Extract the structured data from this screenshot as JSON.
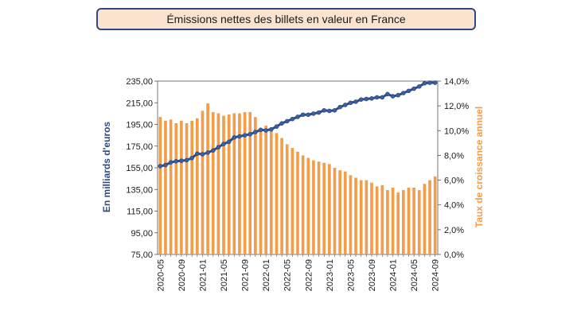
{
  "title": "Émissions nettes des billets en valeur en France",
  "colors": {
    "bars": "#f39c4a",
    "line": "#2e4a7f",
    "marker": "#3a5fa8",
    "title_bg": "#fbe3d0"
  },
  "chart_data": {
    "type": "bar+line",
    "title": "Émissions nettes des billets en valeur en France",
    "ylabel_left": "En milliards d'euros",
    "ylabel_right": "Taux de croissance annuel",
    "ylim_left": [
      75,
      235
    ],
    "ylim_right": [
      0,
      14
    ],
    "yticks_left": [
      "75,00",
      "95,00",
      "115,00",
      "135,00",
      "155,00",
      "175,00",
      "195,00",
      "215,00",
      "235,00"
    ],
    "yticks_right": [
      "0,0%",
      "2,0%",
      "4,0%",
      "6,0%",
      "8,0%",
      "10,0%",
      "12,0%",
      "14,0%"
    ],
    "xticks": [
      "2020-05",
      "2020-09",
      "2021-01",
      "2021-05",
      "2021-09",
      "2022-01",
      "2022-05",
      "2022-09",
      "2023-01",
      "2023-05",
      "2023-09",
      "2024-01",
      "2024-05",
      "2024-09"
    ],
    "categories": [
      "2020-05",
      "2020-06",
      "2020-07",
      "2020-08",
      "2020-09",
      "2020-10",
      "2020-11",
      "2020-12",
      "2021-01",
      "2021-02",
      "2021-03",
      "2021-04",
      "2021-05",
      "2021-06",
      "2021-07",
      "2021-08",
      "2021-09",
      "2021-10",
      "2021-11",
      "2021-12",
      "2022-01",
      "2022-02",
      "2022-03",
      "2022-04",
      "2022-05",
      "2022-06",
      "2022-07",
      "2022-08",
      "2022-09",
      "2022-10",
      "2022-11",
      "2022-12",
      "2023-01",
      "2023-02",
      "2023-03",
      "2023-04",
      "2023-05",
      "2023-06",
      "2023-07",
      "2023-08",
      "2023-09",
      "2023-10",
      "2023-11",
      "2023-12",
      "2024-01",
      "2024-02",
      "2024-03",
      "2024-04",
      "2024-05",
      "2024-06",
      "2024-07",
      "2024-08",
      "2024-09"
    ],
    "series": [
      {
        "name": "Émissions nettes (milliards d'euros)",
        "axis": "left",
        "kind": "line",
        "values": [
          156.5,
          157.5,
          160,
          161,
          161.5,
          162,
          164,
          168,
          167.5,
          169,
          171,
          174,
          177,
          179,
          183,
          184,
          185,
          186,
          188,
          190,
          189.5,
          190.5,
          193,
          196,
          198,
          200,
          202,
          204,
          204,
          205,
          206,
          208,
          207.5,
          208,
          211,
          213,
          215,
          216,
          218,
          218.5,
          219,
          220,
          220,
          223,
          221,
          222,
          224,
          226,
          228,
          230,
          233,
          233.5,
          233.5
        ]
      },
      {
        "name": "Taux de croissance annuel (%)",
        "axis": "right",
        "kind": "bar",
        "values": [
          11.1,
          10.8,
          10.9,
          10.6,
          10.8,
          10.6,
          10.8,
          11.0,
          11.6,
          12.2,
          11.5,
          11.4,
          11.2,
          11.3,
          11.4,
          11.4,
          11.5,
          11.5,
          11.1,
          10.1,
          10.4,
          10.0,
          9.8,
          9.4,
          8.9,
          8.6,
          8.3,
          8.0,
          7.8,
          7.6,
          7.5,
          7.4,
          7.3,
          7.0,
          6.8,
          6.7,
          6.4,
          6.2,
          6.0,
          6.0,
          5.8,
          5.5,
          5.6,
          5.2,
          5.4,
          5.0,
          5.2,
          5.4,
          5.4,
          5.2,
          5.7,
          6.0,
          6.3
        ]
      }
    ]
  }
}
